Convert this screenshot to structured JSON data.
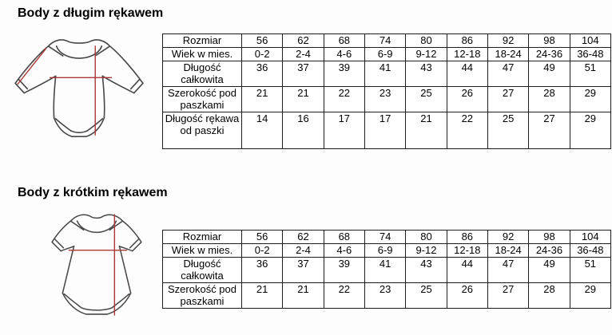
{
  "colors": {
    "background": "#fdfdfd",
    "table_border": "#1d1d1d",
    "garment_outline": "#474747",
    "measurement_line_red": "#ac3939"
  },
  "sections": [
    {
      "title": "Body z długim rękawem",
      "image": "long-sleeve-bodysuit-drawing",
      "table": {
        "rows": [
          {
            "label": "Rozmiar",
            "values": [
              "56",
              "62",
              "68",
              "74",
              "80",
              "86",
              "92",
              "98",
              "104"
            ]
          },
          {
            "label": "Wiek w mies.",
            "values": [
              "0-2",
              "2-4",
              "4-6",
              "6-9",
              "9-12",
              "12-18",
              "18-24",
              "24-36",
              "36-48"
            ]
          },
          {
            "label": "Długość całkowita",
            "values": [
              "36",
              "37",
              "39",
              "41",
              "43",
              "44",
              "47",
              "49",
              "51"
            ]
          },
          {
            "label": "Szerokość pod paszkami",
            "values": [
              "21",
              "21",
              "22",
              "23",
              "25",
              "26",
              "27",
              "28",
              "29"
            ]
          },
          {
            "label": "Długość rękawa od paszki",
            "values": [
              "14",
              "16",
              "17",
              "17",
              "21",
              "22",
              "25",
              "27",
              "29"
            ]
          }
        ]
      }
    },
    {
      "title": "Body z krótkim rękawem",
      "image": "short-sleeve-bodysuit-drawing",
      "table": {
        "rows": [
          {
            "label": "Rozmiar",
            "values": [
              "56",
              "62",
              "68",
              "74",
              "80",
              "86",
              "92",
              "98",
              "104"
            ]
          },
          {
            "label": "Wiek w mies.",
            "values": [
              "0-2",
              "2-4",
              "4-6",
              "6-9",
              "9-12",
              "12-18",
              "18-24",
              "24-36",
              "36-48"
            ]
          },
          {
            "label": "Długość całkowita",
            "values": [
              "36",
              "37",
              "39",
              "41",
              "43",
              "44",
              "47",
              "49",
              "51"
            ]
          },
          {
            "label": "Szerokość pod paszkami",
            "values": [
              "21",
              "21",
              "22",
              "23",
              "25",
              "26",
              "27",
              "28",
              "29"
            ]
          }
        ]
      }
    }
  ]
}
